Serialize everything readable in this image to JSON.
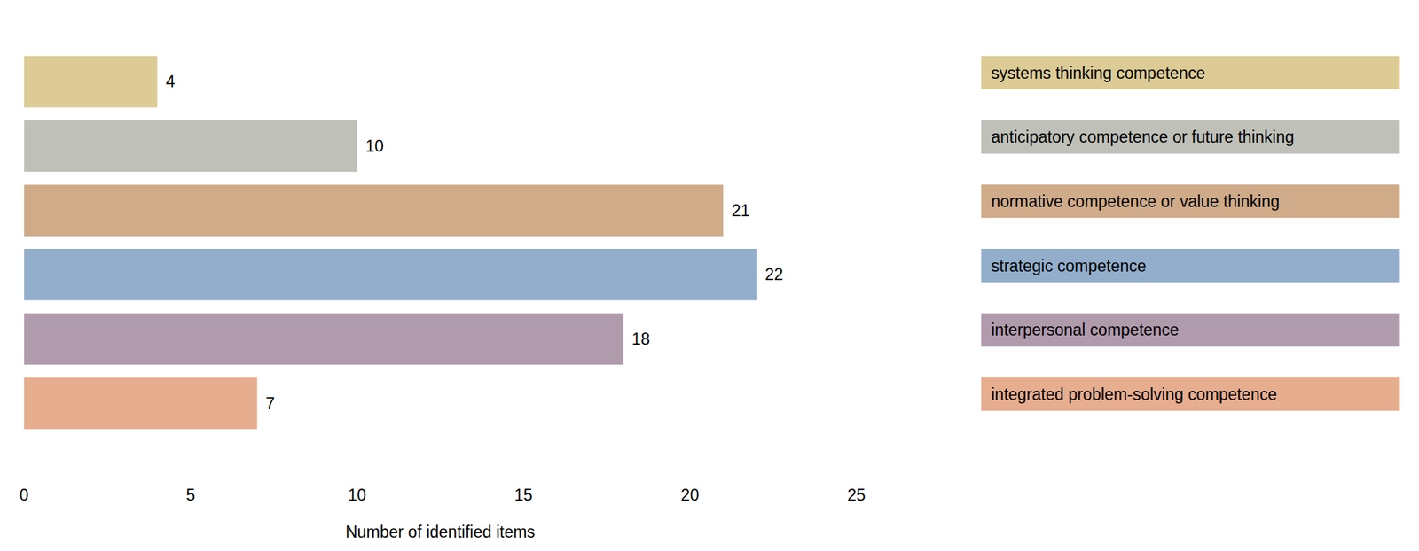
{
  "chart_data": {
    "type": "bar",
    "orientation": "horizontal",
    "categories": [
      "systems thinking competence",
      "anticipatory competence or future thinking",
      "normative competence or value thinking",
      "strategic competence",
      "interpersonal competence",
      "integrated problem-solving competence"
    ],
    "values": [
      4,
      10,
      21,
      22,
      18,
      7
    ],
    "colors": [
      "#dccb95",
      "#bfc1b9",
      "#cfab8a",
      "#92aecb",
      "#b09bad",
      "#e6ad8f"
    ],
    "x_label": "Number of identified items",
    "xlim": [
      0,
      25
    ],
    "xticks": [
      0,
      5,
      10,
      15,
      20,
      25
    ],
    "grid": false,
    "data_labels": true,
    "tick_labels": "x",
    "legend": "right"
  }
}
